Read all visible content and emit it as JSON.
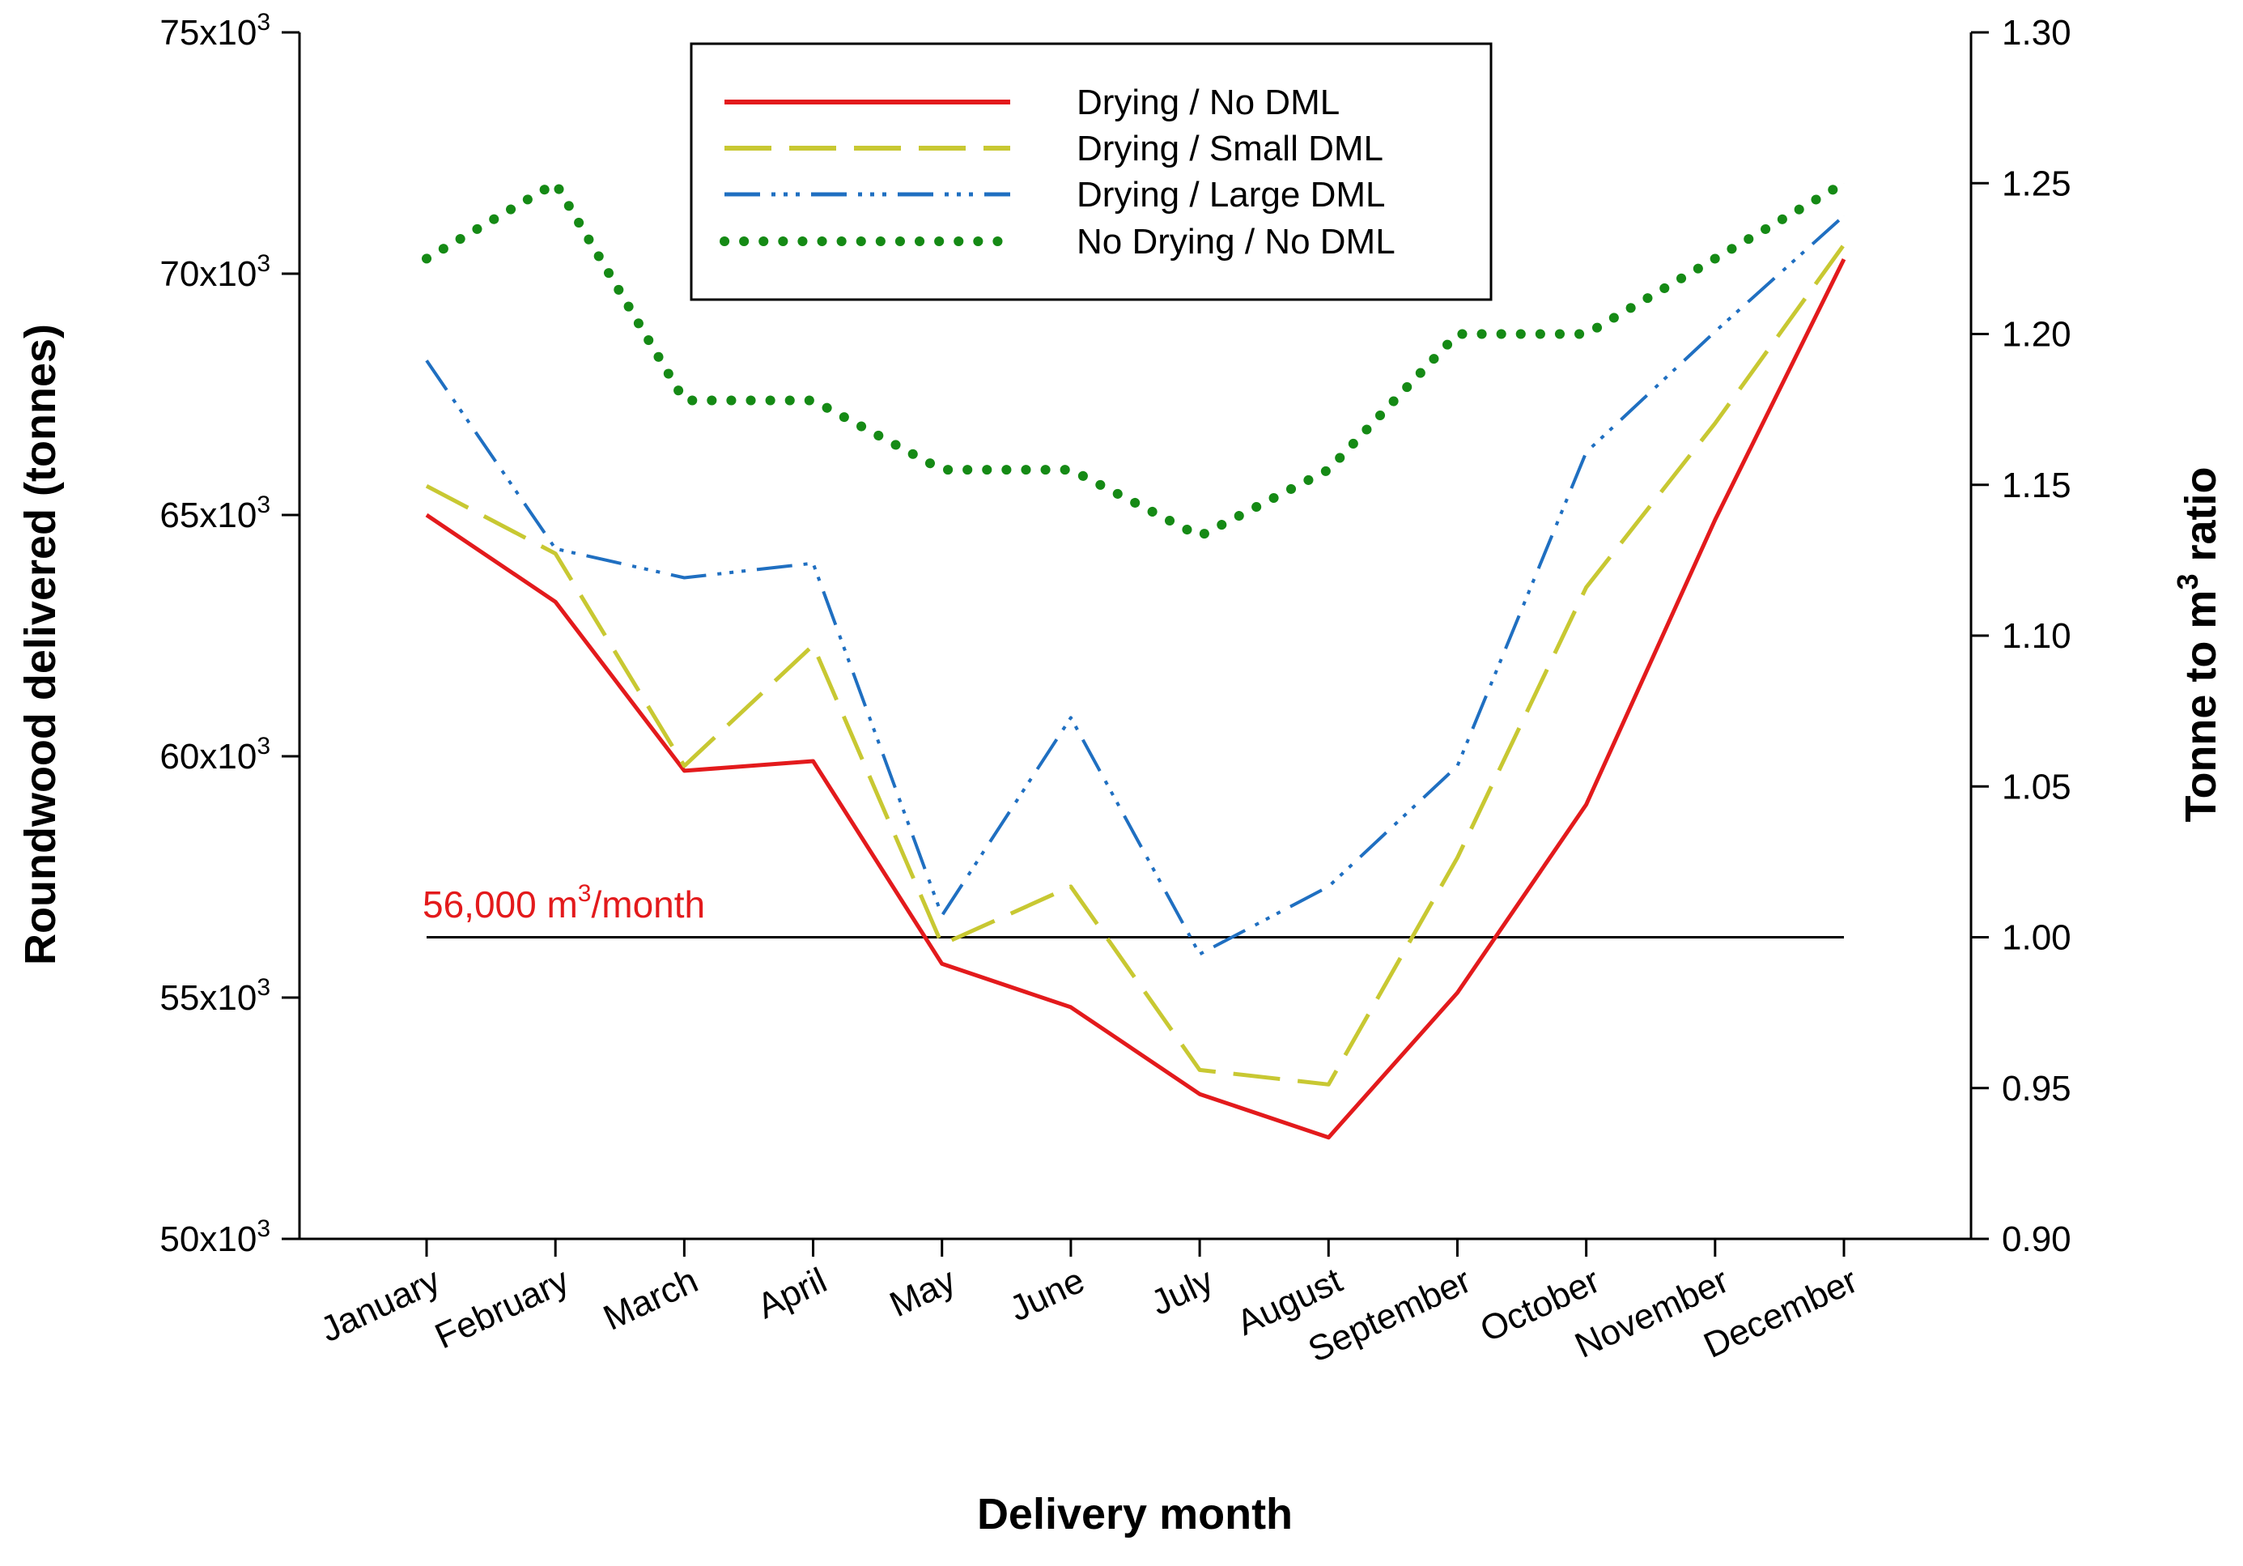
{
  "chart_data": {
    "type": "line",
    "xlabel": "Delivery month",
    "ylabel": "Roundwood delivered (tonnes)",
    "y2label_prefix": "Tonne to m",
    "y2label_sup": "3",
    "y2label_suffix": " ratio",
    "categories": [
      "January",
      "February",
      "March",
      "April",
      "May",
      "June",
      "July",
      "August",
      "September",
      "October",
      "November",
      "December"
    ],
    "ylim": [
      50000,
      75000
    ],
    "y2lim": [
      0.9,
      1.3
    ],
    "yticks": [
      {
        "value": 75000,
        "base": "75x10",
        "exp": "3"
      },
      {
        "value": 70000,
        "base": "70x10",
        "exp": "3"
      },
      {
        "value": 65000,
        "base": "65x10",
        "exp": "3"
      },
      {
        "value": 60000,
        "base": "60x10",
        "exp": "3"
      },
      {
        "value": 55000,
        "base": "55x10",
        "exp": "3"
      },
      {
        "value": 50000,
        "base": "50x10",
        "exp": "3"
      }
    ],
    "y2ticks": [
      "1.30",
      "1.25",
      "1.20",
      "1.15",
      "1.10",
      "1.05",
      "1.00",
      "0.95",
      "0.90"
    ],
    "series": [
      {
        "name": "Drying / No DML",
        "color": "#e31a1c",
        "style": "solid",
        "axis": "left",
        "values": [
          65000,
          63200,
          59700,
          59900,
          55700,
          54800,
          53000,
          52100,
          55100,
          59000,
          64900,
          70300
        ]
      },
      {
        "name": "Drying / Small DML",
        "color": "#c8c832",
        "style": "dashed",
        "axis": "left",
        "values": [
          65600,
          64200,
          59800,
          62300,
          56100,
          57300,
          53500,
          53200,
          57900,
          63500,
          66900,
          70600
        ]
      },
      {
        "name": "Drying / Large DML",
        "color": "#1f6fc1",
        "style": "dashdotdot",
        "axis": "left",
        "values": [
          68200,
          64300,
          63700,
          64000,
          56700,
          60800,
          55900,
          57300,
          59800,
          66300,
          68800,
          71200
        ]
      },
      {
        "name": "No Drying / No DML",
        "color": "#158a15",
        "style": "dotted",
        "axis": "right",
        "values": [
          1.225,
          1.25,
          1.178,
          1.178,
          1.155,
          1.155,
          1.133,
          1.155,
          1.2,
          1.2,
          1.225,
          1.25
        ]
      }
    ],
    "reference_line": {
      "value": 1.0,
      "axis": "right",
      "color": "#000000"
    },
    "annotation": {
      "prefix": "56,000 m",
      "sup": "3",
      "suffix": "/month",
      "color": "#e31a1c"
    },
    "legend_position": "top-center"
  }
}
